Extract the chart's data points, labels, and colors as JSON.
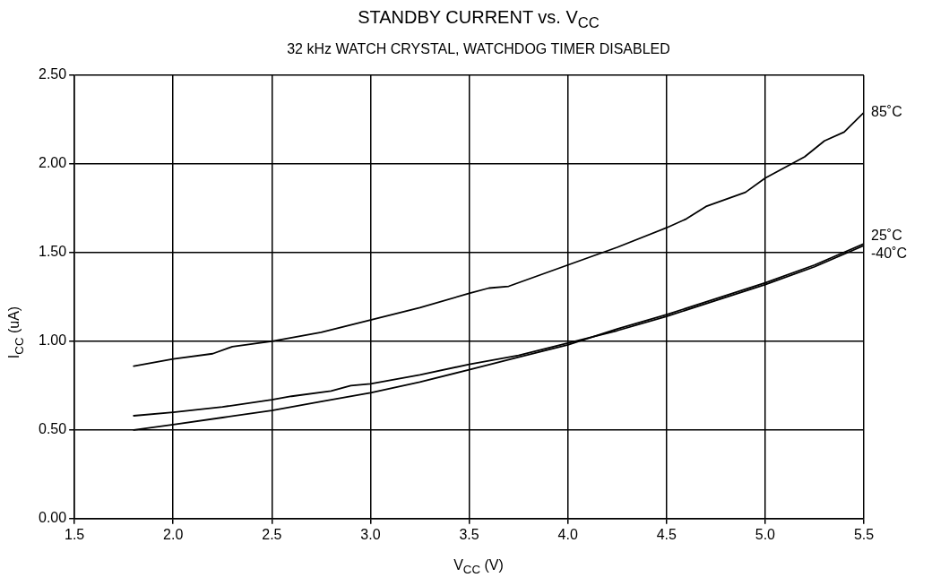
{
  "chart_data": {
    "type": "line",
    "title": "STANDBY CURRENT vs. V$_{CC}$",
    "subtitle": "32 kHz WATCH CRYSTAL, WATCHDOG TIMER DISABLED",
    "xlabel": "V$_{CC}$ (V)",
    "ylabel": "I$_{CC}$ (uA)",
    "xlim": [
      1.5,
      5.5
    ],
    "xticks": [
      1.5,
      {
        "value": 2,
        "label": "2.0"
      },
      2.5,
      {
        "value": 3,
        "label": "3.0"
      },
      3.5,
      {
        "value": 4,
        "label": "4.0"
      },
      4.5,
      {
        "value": 5,
        "label": "5.0"
      },
      5.5
    ],
    "ylim": [
      0,
      2.5
    ],
    "yticks": [
      {
        "value": 0,
        "label": "0.00"
      },
      {
        "value": 0.5,
        "label": "0.50"
      },
      {
        "value": 1,
        "label": "1.00"
      },
      {
        "value": 1.5,
        "label": "1.50"
      },
      {
        "value": 2,
        "label": "2.00"
      },
      {
        "value": 2.5,
        "label": "2.50"
      }
    ],
    "grid": true,
    "marker": "none",
    "line_style": "solid",
    "series": [
      {
        "name": "85˚C",
        "color": "#000000",
        "x": [
          1.8,
          2.0,
          2.2,
          2.3,
          2.5,
          2.75,
          3.0,
          3.25,
          3.5,
          3.6,
          3.7,
          4.0,
          4.25,
          4.5,
          4.6,
          4.7,
          4.9,
          5.0,
          5.2,
          5.3,
          5.4,
          5.5
        ],
        "values": [
          0.86,
          0.9,
          0.93,
          0.97,
          1.0,
          1.05,
          1.12,
          1.19,
          1.27,
          1.3,
          1.31,
          1.43,
          1.53,
          1.64,
          1.69,
          1.76,
          1.84,
          1.92,
          2.04,
          2.13,
          2.18,
          2.29
        ]
      },
      {
        "name": "25˚C",
        "color": "#000000",
        "x": [
          1.8,
          2.0,
          2.25,
          2.5,
          2.6,
          2.8,
          2.9,
          3.0,
          3.25,
          3.5,
          3.75,
          4.0,
          4.25,
          4.5,
          4.75,
          5.0,
          5.25,
          5.5
        ],
        "values": [
          0.58,
          0.6,
          0.63,
          0.67,
          0.69,
          0.72,
          0.75,
          0.76,
          0.81,
          0.87,
          0.92,
          0.99,
          1.06,
          1.14,
          1.23,
          1.32,
          1.42,
          1.54
        ]
      },
      {
        "name": "-40˚C",
        "color": "#000000",
        "x": [
          1.8,
          2.0,
          2.25,
          2.5,
          2.75,
          3.0,
          3.25,
          3.5,
          3.75,
          4.0,
          4.25,
          4.5,
          4.75,
          5.0,
          5.25,
          5.5
        ],
        "values": [
          0.5,
          0.53,
          0.57,
          0.61,
          0.66,
          0.71,
          0.77,
          0.84,
          0.91,
          0.98,
          1.07,
          1.15,
          1.24,
          1.33,
          1.43,
          1.55
        ]
      }
    ]
  }
}
